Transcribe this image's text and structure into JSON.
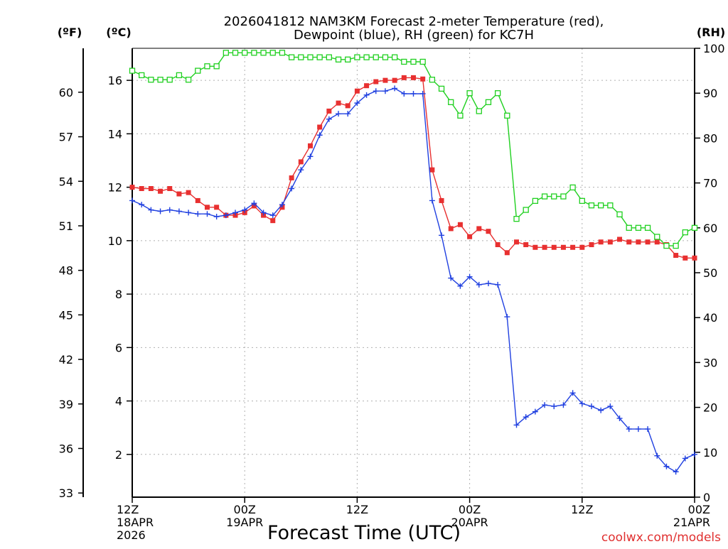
{
  "chart_data": {
    "type": "line",
    "title_line1": "2026041812 NAM3KM Forecast 2-meter Temperature (red),",
    "title_line2": "Dewpoint (blue), RH (green) for KC7H",
    "xlabel": "Forecast Time (UTC)",
    "credit": "coolwx.com/models",
    "units": {
      "fahrenheit": "(ºF)",
      "celsius": "(ºC)",
      "rh": "(RH)"
    },
    "x_range_hours": [
      0,
      60
    ],
    "ylim_celsius": [
      0.4,
      17.2
    ],
    "ylim_rh": [
      0,
      100
    ],
    "left_ticks_celsius": [
      "2",
      "4",
      "6",
      "8",
      "10",
      "12",
      "14",
      "16"
    ],
    "fahrenheit_ticks": [
      "33",
      "36",
      "39",
      "42",
      "45",
      "48",
      "51",
      "54",
      "57",
      "60"
    ],
    "rh_ticks": [
      "0",
      "10",
      "20",
      "30",
      "40",
      "50",
      "60",
      "70",
      "80",
      "90",
      "100"
    ],
    "x_ticks": [
      {
        "hour": 0,
        "lines": [
          "12Z",
          "18APR",
          "2026"
        ]
      },
      {
        "hour": 12,
        "lines": [
          "00Z",
          "19APR"
        ]
      },
      {
        "hour": 24,
        "lines": [
          "12Z"
        ]
      },
      {
        "hour": 36,
        "lines": [
          "00Z",
          "20APR"
        ]
      },
      {
        "hour": 48,
        "lines": [
          "12Z"
        ]
      },
      {
        "hour": 60,
        "lines": [
          "00Z",
          "21APR"
        ]
      }
    ],
    "x_hours": [
      0,
      1,
      2,
      3,
      4,
      5,
      6,
      7,
      8,
      9,
      10,
      11,
      12,
      13,
      14,
      15,
      16,
      17,
      18,
      19,
      20,
      21,
      22,
      23,
      24,
      25,
      26,
      27,
      28,
      29,
      30,
      31,
      32,
      33,
      34,
      35,
      36,
      37,
      38,
      39,
      40,
      41,
      42,
      43,
      44,
      45,
      46,
      47,
      48,
      49,
      50,
      51,
      52,
      53,
      54,
      55,
      56,
      57,
      58,
      59,
      60
    ],
    "series": [
      {
        "name": "Temperature",
        "color": "#e83030",
        "marker": "square-filled",
        "values": [
          12.0,
          11.95,
          11.95,
          11.85,
          11.95,
          11.75,
          11.8,
          11.5,
          11.25,
          11.25,
          10.95,
          10.95,
          11.05,
          11.3,
          10.95,
          10.75,
          11.25,
          12.35,
          12.95,
          13.55,
          14.25,
          14.85,
          15.15,
          15.05,
          15.6,
          15.8,
          15.95,
          16.0,
          16.0,
          16.1,
          16.1,
          16.05,
          12.65,
          11.5,
          10.45,
          10.6,
          10.15,
          10.45,
          10.35,
          9.85,
          9.55,
          9.95,
          9.85,
          9.75,
          9.75,
          9.75,
          9.75,
          9.75,
          9.75,
          9.85,
          9.95,
          9.95,
          10.05,
          9.95,
          9.95,
          9.95,
          9.95,
          9.85,
          9.45,
          9.35,
          9.35
        ]
      },
      {
        "name": "Dewpoint",
        "color": "#2040e0",
        "marker": "plus",
        "values": [
          11.5,
          11.35,
          11.15,
          11.1,
          11.15,
          11.1,
          11.05,
          11.0,
          11.0,
          10.9,
          10.95,
          11.05,
          11.15,
          11.4,
          11.05,
          10.95,
          11.35,
          11.95,
          12.65,
          13.15,
          13.95,
          14.55,
          14.75,
          14.75,
          15.15,
          15.45,
          15.6,
          15.6,
          15.7,
          15.5,
          15.5,
          15.5,
          11.5,
          10.2,
          8.6,
          8.3,
          8.65,
          8.35,
          8.4,
          8.35,
          7.15,
          3.1,
          3.4,
          3.6,
          3.85,
          3.8,
          3.85,
          4.3,
          3.9,
          3.8,
          3.65,
          3.8,
          3.35,
          2.95,
          2.95,
          2.95,
          1.95,
          1.55,
          1.35,
          1.85,
          2.0
        ]
      },
      {
        "name": "RH",
        "color": "#20d020",
        "marker": "square-open",
        "values": [
          95,
          94,
          93,
          93,
          93,
          94,
          93,
          95,
          96,
          96,
          99,
          99,
          99,
          99,
          99,
          99,
          99,
          98,
          98,
          98,
          98,
          98,
          97.5,
          97.5,
          98,
          98,
          98,
          98,
          98,
          97,
          97,
          97,
          93,
          91,
          88,
          85,
          90,
          86,
          88,
          90,
          85,
          62,
          64,
          66,
          67,
          67,
          67,
          69,
          66,
          65,
          65,
          65,
          63,
          60,
          60,
          60,
          58,
          56,
          56,
          59,
          60
        ]
      }
    ]
  }
}
